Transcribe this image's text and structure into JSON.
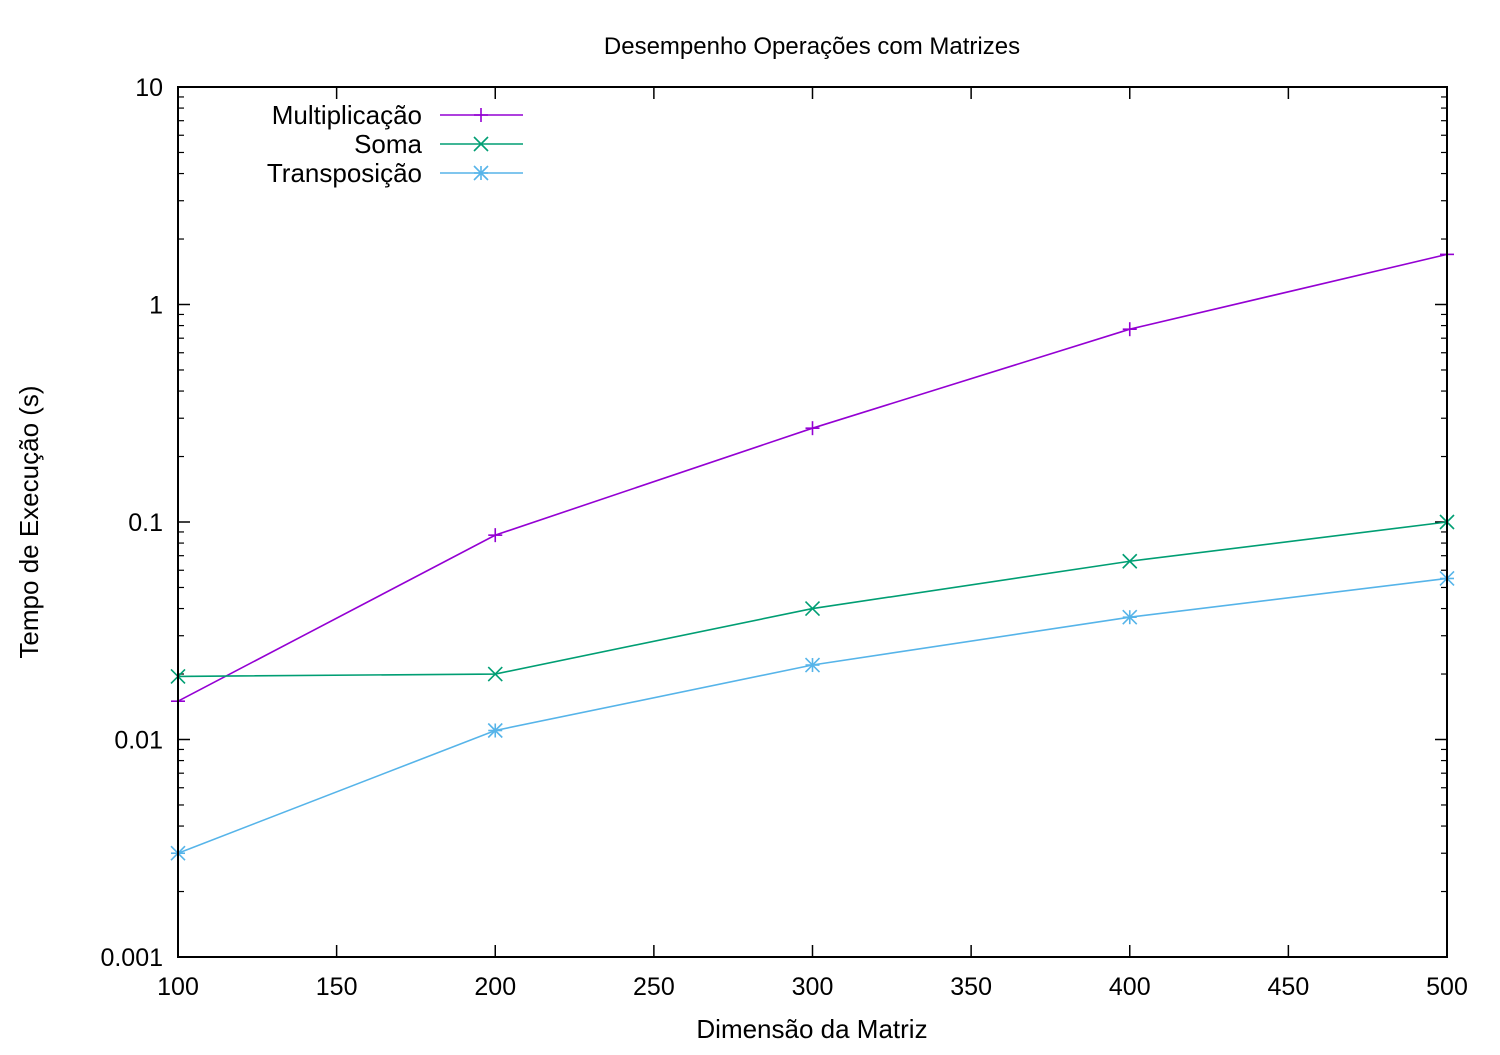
{
  "chart_data": {
    "type": "line",
    "title": "Desempenho Operações com Matrizes",
    "xlabel": "Dimensão da Matriz",
    "ylabel": "Tempo de Execução (s)",
    "xlim": [
      100,
      500
    ],
    "ylim": [
      0.001,
      10
    ],
    "yscale": "log",
    "grid": false,
    "legend_position": "top-left",
    "x_ticks": [
      100,
      150,
      200,
      250,
      300,
      350,
      400,
      450,
      500
    ],
    "x_tick_labels": [
      "100",
      "150",
      "200",
      "250",
      "300",
      "350",
      "400",
      "450",
      "500"
    ],
    "y_ticks": [
      0.001,
      0.01,
      0.1,
      1,
      10
    ],
    "y_tick_labels": [
      "0.001",
      "0.01",
      "0.1",
      "1",
      "10"
    ],
    "x": [
      100,
      200,
      300,
      400,
      500
    ],
    "series": [
      {
        "name": "Multiplicação",
        "color": "#9400d3",
        "marker": "plus",
        "values": [
          0.015,
          0.087,
          0.27,
          0.77,
          1.7
        ]
      },
      {
        "name": "Soma",
        "color": "#009e73",
        "marker": "cross",
        "values": [
          0.0195,
          0.02,
          0.04,
          0.066,
          0.1
        ]
      },
      {
        "name": "Transposição",
        "color": "#56b4e9",
        "marker": "star",
        "values": [
          0.003,
          0.011,
          0.022,
          0.0365,
          0.055
        ]
      }
    ]
  }
}
